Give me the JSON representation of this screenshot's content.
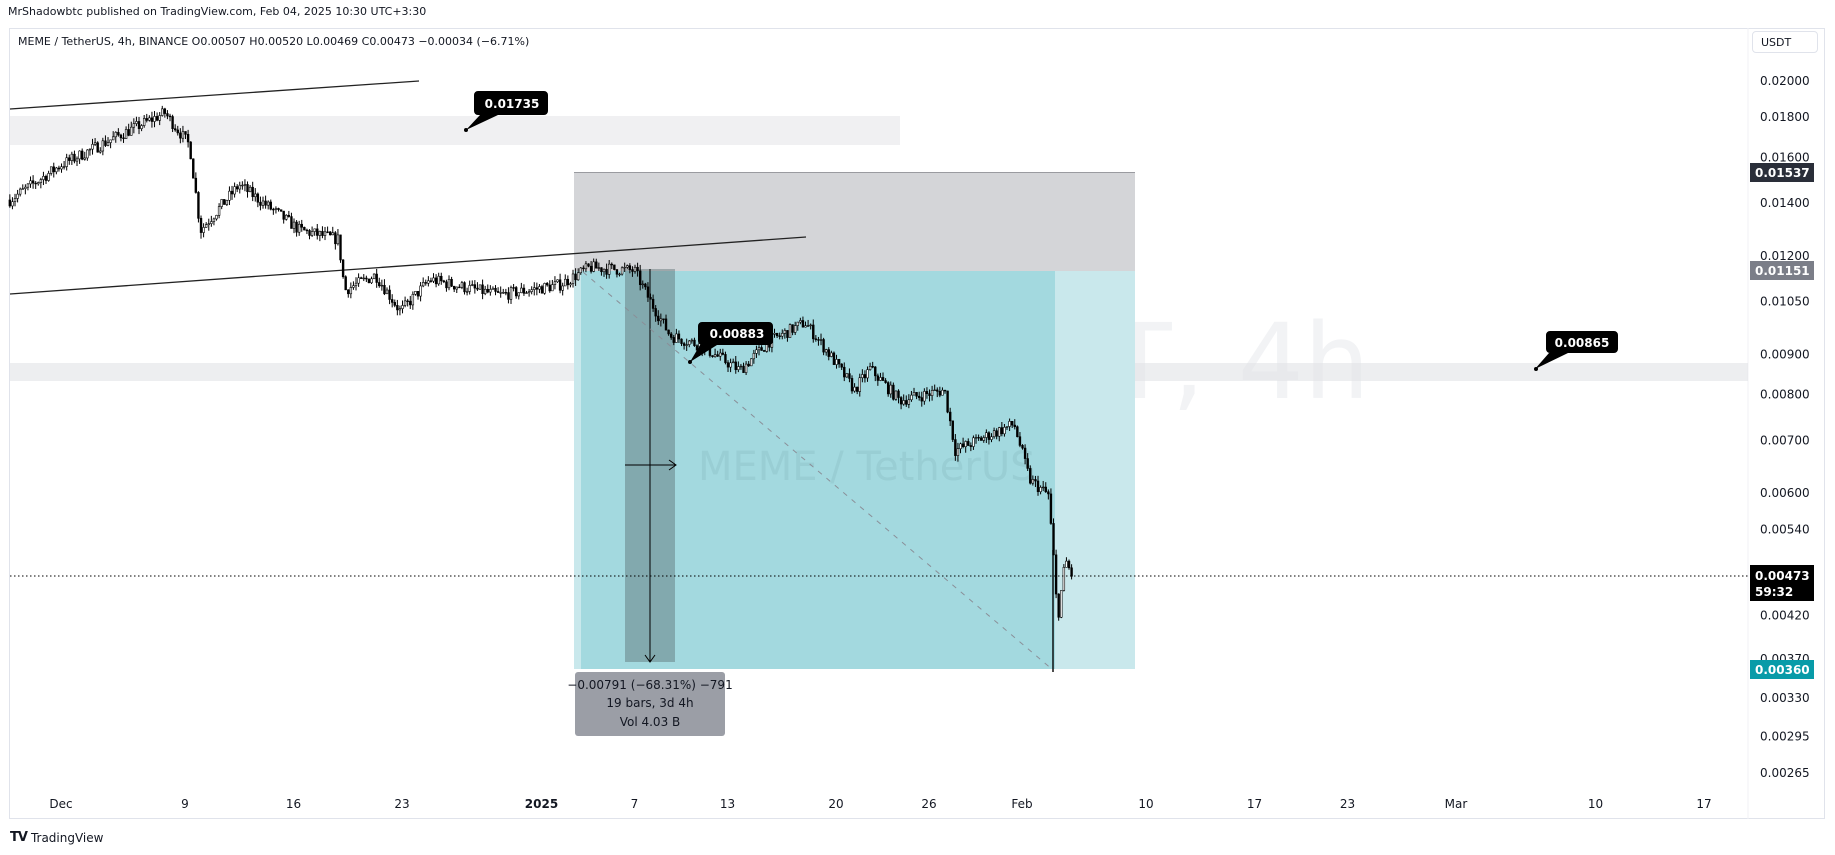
{
  "header": {
    "published": "MrShadowbtc published on TradingView.com, Feb 04, 2025 10:30 UTC+3:30",
    "ohlc": "MEME / TetherUS, 4h, BINANCE  O0.00507  H0.00520  L0.00469  C0.00473  −0.00034 (−6.71%)"
  },
  "currency_button": "USDT",
  "footer_logo": "TradingView",
  "watermark": {
    "main": "MEMEUSDT, 4h",
    "sub": "MEME / TetherUS"
  },
  "drawings": {
    "label_top": "0.01735",
    "label_mid": "0.00883",
    "label_right": "0.00865",
    "measure": {
      "line1": "−0.00791 (−68.31%) −791",
      "line2": "19 bars, 3d 4h",
      "line3": "Vol 4.03 B"
    }
  },
  "price_labels": {
    "stop": "0.01537",
    "entry": "0.01151",
    "current": "0.00473",
    "countdown": "59:32",
    "target": "0.00360"
  },
  "colors": {
    "up": "#ffffff",
    "down": "#000000",
    "target": "#a3d9df",
    "stop": "#d4d5d8",
    "target_label": "#089ba8"
  },
  "chart_data": {
    "type": "candlestick",
    "symbol": "MEME / TetherUS",
    "timeframe": "4h",
    "exchange": "BINANCE",
    "scale": "log",
    "ylim": [
      0.00245,
      0.0215
    ],
    "y_ticks": [
      "0.02000",
      "0.01800",
      "0.01600",
      "0.01400",
      "0.01200",
      "0.01050",
      "0.00900",
      "0.00800",
      "0.00700",
      "0.00600",
      "0.00540",
      "0.00420",
      "0.00370",
      "0.00330",
      "0.00295",
      "0.00265"
    ],
    "x_ticks": [
      {
        "label": "Dec",
        "day": 0
      },
      {
        "label": "9",
        "day": 8
      },
      {
        "label": "16",
        "day": 15
      },
      {
        "label": "23",
        "day": 22
      },
      {
        "label": "2025",
        "day": 31,
        "bold": true
      },
      {
        "label": "7",
        "day": 37
      },
      {
        "label": "13",
        "day": 43
      },
      {
        "label": "20",
        "day": 50
      },
      {
        "label": "26",
        "day": 56
      },
      {
        "label": "Feb",
        "day": 62
      },
      {
        "label": "10",
        "day": 70
      },
      {
        "label": "17",
        "day": 77
      },
      {
        "label": "23",
        "day": 83
      },
      {
        "label": "Mar",
        "day": 90
      },
      {
        "label": "10",
        "day": 99
      },
      {
        "label": "17",
        "day": 106
      }
    ],
    "x_unit": "days since Dec 1, 2024",
    "price_path": [
      [
        -3.3,
        0.01413
      ],
      [
        0,
        0.01565
      ],
      [
        3.8,
        0.01708
      ],
      [
        6.7,
        0.01822
      ],
      [
        8.3,
        0.01658
      ],
      [
        9,
        0.01294
      ],
      [
        11.5,
        0.01477
      ],
      [
        15.4,
        0.01294
      ],
      [
        17.9,
        0.01259
      ],
      [
        18.3,
        0.01086
      ],
      [
        20.3,
        0.01135
      ],
      [
        21.9,
        0.0102
      ],
      [
        23.8,
        0.0112
      ],
      [
        28.3,
        0.0107
      ],
      [
        32.2,
        0.01103
      ],
      [
        34.1,
        0.0116
      ],
      [
        37,
        0.0115
      ],
      [
        38,
        0.01053
      ],
      [
        39.3,
        0.00951
      ],
      [
        41.2,
        0.00925
      ],
      [
        43.8,
        0.00859
      ],
      [
        45.7,
        0.00935
      ],
      [
        48,
        0.00988
      ],
      [
        49.6,
        0.00899
      ],
      [
        51.2,
        0.00811
      ],
      [
        52.2,
        0.00863
      ],
      [
        54.1,
        0.00787
      ],
      [
        57,
        0.00811
      ],
      [
        57.7,
        0.0068
      ],
      [
        60,
        0.00713
      ],
      [
        61.5,
        0.00734
      ],
      [
        62.5,
        0.00624
      ],
      [
        63.7,
        0.00597
      ],
      [
        64,
        0.00508
      ],
      [
        64.3,
        0.00415
      ],
      [
        64.8,
        0.00494
      ],
      [
        65.2,
        0.00473
      ]
    ],
    "horizontal_zones": [
      0.01735,
      0.00865
    ],
    "short_position": {
      "entry": 0.01151,
      "stop": 0.01537,
      "target": 0.0036
    },
    "last_price": 0.00473
  }
}
